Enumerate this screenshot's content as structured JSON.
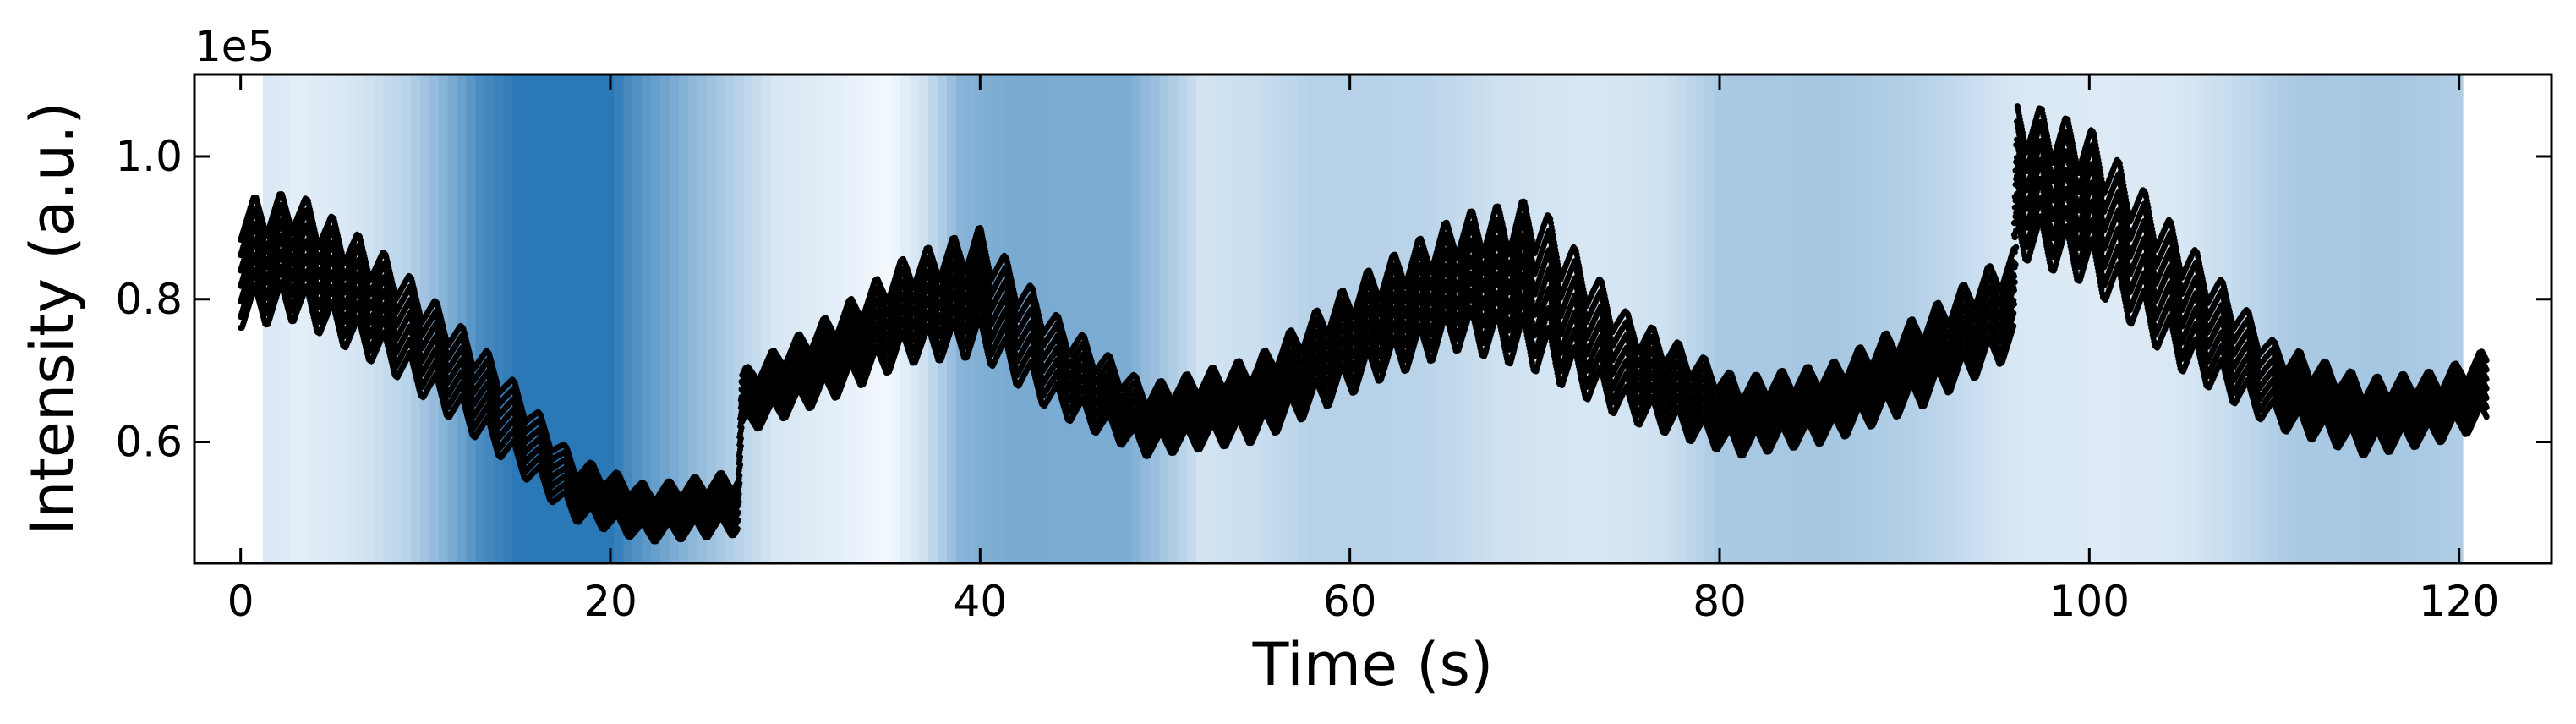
{
  "chart_data": {
    "type": "scatter",
    "title": "",
    "xlabel": "Time (s)",
    "ylabel": "Intensity (a.u.)",
    "y_offset_label": "1e5",
    "xlim": [
      -2.5,
      125
    ],
    "ylim": [
      0.43,
      1.115
    ],
    "x_ticks": [
      0,
      20,
      40,
      60,
      80,
      100,
      120
    ],
    "x_tick_labels": [
      "0",
      "20",
      "40",
      "60",
      "80",
      "100",
      "120"
    ],
    "y_ticks": [
      0.6,
      0.8,
      1.0
    ],
    "y_tick_labels": [
      "0.6",
      "0.8",
      "1.0"
    ],
    "tick_direction": "in",
    "grid": false,
    "series": [
      {
        "name": "intensity",
        "color": "#000000",
        "marker": "dot",
        "band_width": 0.15,
        "oscillation_period_s": 1.4,
        "envelope": [
          {
            "t": 0,
            "low": 0.76,
            "high": 0.94
          },
          {
            "t": 3,
            "low": 0.77,
            "high": 0.95
          },
          {
            "t": 8,
            "low": 0.7,
            "high": 0.86
          },
          {
            "t": 14,
            "low": 0.58,
            "high": 0.71
          },
          {
            "t": 18,
            "low": 0.49,
            "high": 0.58
          },
          {
            "t": 22,
            "low": 0.46,
            "high": 0.54
          },
          {
            "t": 26.9,
            "low": 0.47,
            "high": 0.56
          },
          {
            "t": 27.1,
            "low": 0.61,
            "high": 0.7
          },
          {
            "t": 32,
            "low": 0.66,
            "high": 0.78
          },
          {
            "t": 36,
            "low": 0.71,
            "high": 0.86
          },
          {
            "t": 40,
            "low": 0.72,
            "high": 0.9
          },
          {
            "t": 44,
            "low": 0.64,
            "high": 0.78
          },
          {
            "t": 49,
            "low": 0.58,
            "high": 0.68
          },
          {
            "t": 55,
            "low": 0.6,
            "high": 0.72
          },
          {
            "t": 61,
            "low": 0.68,
            "high": 0.84
          },
          {
            "t": 66,
            "low": 0.73,
            "high": 0.92
          },
          {
            "t": 70,
            "low": 0.7,
            "high": 0.94
          },
          {
            "t": 75,
            "low": 0.63,
            "high": 0.78
          },
          {
            "t": 81,
            "low": 0.58,
            "high": 0.69
          },
          {
            "t": 86,
            "low": 0.6,
            "high": 0.71
          },
          {
            "t": 91,
            "low": 0.65,
            "high": 0.78
          },
          {
            "t": 95.9,
            "low": 0.72,
            "high": 0.87
          },
          {
            "t": 96.1,
            "low": 0.86,
            "high": 1.08
          },
          {
            "t": 100,
            "low": 0.82,
            "high": 1.04
          },
          {
            "t": 105,
            "low": 0.7,
            "high": 0.89
          },
          {
            "t": 110,
            "low": 0.62,
            "high": 0.74
          },
          {
            "t": 115,
            "low": 0.58,
            "high": 0.69
          },
          {
            "t": 119,
            "low": 0.6,
            "high": 0.7
          },
          {
            "t": 121.5,
            "low": 0.62,
            "high": 0.73
          }
        ]
      }
    ],
    "background_shading": {
      "description": "vertical blue intensity bands behind the data",
      "x_range": [
        1.2,
        120.2
      ],
      "color_low": "#f7fbff",
      "color_high": "#2b78b6",
      "levels": [
        {
          "t": 1.2,
          "v": 0.15
        },
        {
          "t": 3,
          "v": 0.1
        },
        {
          "t": 6,
          "v": 0.15
        },
        {
          "t": 9,
          "v": 0.3
        },
        {
          "t": 11,
          "v": 0.55
        },
        {
          "t": 13,
          "v": 0.85
        },
        {
          "t": 15,
          "v": 1.0
        },
        {
          "t": 20,
          "v": 1.0
        },
        {
          "t": 21.5,
          "v": 0.8
        },
        {
          "t": 24,
          "v": 0.55
        },
        {
          "t": 26.5,
          "v": 0.35
        },
        {
          "t": 29,
          "v": 0.15
        },
        {
          "t": 32,
          "v": 0.1
        },
        {
          "t": 35,
          "v": 0.02
        },
        {
          "t": 37,
          "v": 0.2
        },
        {
          "t": 39,
          "v": 0.55
        },
        {
          "t": 42,
          "v": 0.62
        },
        {
          "t": 48,
          "v": 0.6
        },
        {
          "t": 50,
          "v": 0.4
        },
        {
          "t": 52,
          "v": 0.18
        },
        {
          "t": 55,
          "v": 0.22
        },
        {
          "t": 58,
          "v": 0.32
        },
        {
          "t": 64,
          "v": 0.3
        },
        {
          "t": 68,
          "v": 0.2
        },
        {
          "t": 73,
          "v": 0.15
        },
        {
          "t": 77,
          "v": 0.2
        },
        {
          "t": 80,
          "v": 0.38
        },
        {
          "t": 86,
          "v": 0.4
        },
        {
          "t": 91,
          "v": 0.32
        },
        {
          "t": 96,
          "v": 0.15
        },
        {
          "t": 101,
          "v": 0.12
        },
        {
          "t": 105,
          "v": 0.15
        },
        {
          "t": 108,
          "v": 0.25
        },
        {
          "t": 111,
          "v": 0.38
        },
        {
          "t": 116,
          "v": 0.4
        },
        {
          "t": 120.2,
          "v": 0.35
        }
      ]
    }
  }
}
